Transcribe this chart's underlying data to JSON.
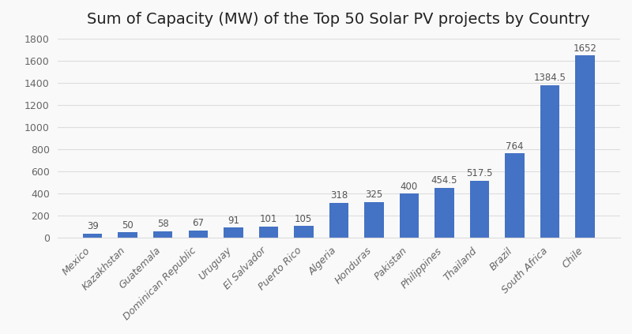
{
  "title": "Sum of Capacity (MW) of the Top 50 Solar PV projects by Country",
  "categories": [
    "Mexico",
    "Kazakhstan",
    "Guatemala",
    "Dominican Republic",
    "Uruguay",
    "El Salvador",
    "Puerto Rico",
    "Algeria",
    "Honduras",
    "Pakistan",
    "Philippines",
    "Thailand",
    "Brazil",
    "South Africa",
    "Chile"
  ],
  "values": [
    39,
    50,
    58,
    67,
    91,
    101,
    105,
    318,
    325,
    400,
    454.5,
    517.5,
    764,
    1384.5,
    1652
  ],
  "bar_color": "#4472C4",
  "background_color": "#f9f9f9",
  "ylim": [
    0,
    1800
  ],
  "yticks": [
    0,
    200,
    400,
    600,
    800,
    1000,
    1200,
    1400,
    1600,
    1800
  ],
  "title_fontsize": 14,
  "label_fontsize": 9,
  "value_fontsize": 8.5,
  "ytick_fontsize": 9,
  "grid_color": "#dddddd",
  "tick_label_color": "#666666",
  "title_color": "#222222",
  "value_label_color": "#555555"
}
